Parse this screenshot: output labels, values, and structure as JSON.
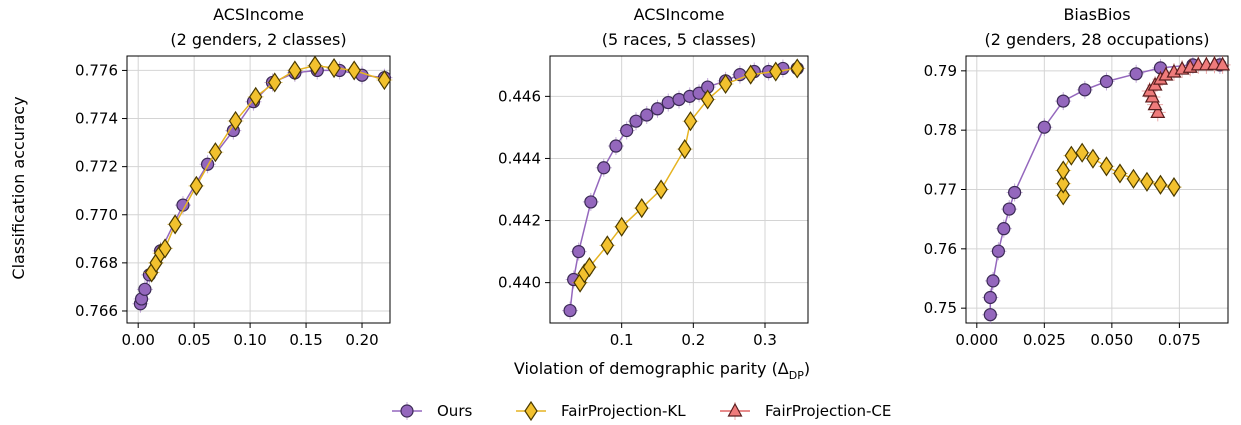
{
  "figure": {
    "ylabel": "Classification accuracy",
    "xlabel_main": "Violation of demographic parity (Δ",
    "xlabel_sub": "DP",
    "xlabel_close": ")"
  },
  "legend": {
    "placement": "bottom-center",
    "items": [
      {
        "label": "Ours",
        "marker": "circle",
        "color": "#9467bd",
        "edge": "#3b2a55",
        "line": "#9467bd"
      },
      {
        "label": "FairProjection-KL",
        "marker": "diamond",
        "color": "#f2c12e",
        "edge": "#4a3a00",
        "line": "#e6b422"
      },
      {
        "label": "FairProjection-CE",
        "marker": "triangle",
        "color": "#ef7b7b",
        "edge": "#5a1e1e",
        "line": "#e06666"
      }
    ]
  },
  "chart_data": [
    {
      "type": "line",
      "title_line1": "ACSIncome",
      "title_line2": "(2 genders, 2 classes)",
      "xlim": [
        -0.01,
        0.225
      ],
      "ylim": [
        0.7655,
        0.7766
      ],
      "xticks": [
        0.0,
        0.05,
        0.1,
        0.15,
        0.2
      ],
      "xtick_labels": [
        "0.00",
        "0.05",
        "0.10",
        "0.15",
        "0.20"
      ],
      "yticks": [
        0.766,
        0.768,
        0.77,
        0.772,
        0.774,
        0.776
      ],
      "ytick_labels": [
        "0.766",
        "0.768",
        "0.770",
        "0.772",
        "0.774",
        "0.776"
      ],
      "grid": true,
      "series": [
        {
          "name": "Ours",
          "marker": "circle",
          "points": [
            [
              0.002,
              0.7663
            ],
            [
              0.003,
              0.7665
            ],
            [
              0.006,
              0.7669
            ],
            [
              0.01,
              0.7675
            ],
            [
              0.02,
              0.7685
            ],
            [
              0.04,
              0.7704
            ],
            [
              0.062,
              0.7721
            ],
            [
              0.085,
              0.7735
            ],
            [
              0.103,
              0.7747
            ],
            [
              0.12,
              0.7755
            ],
            [
              0.14,
              0.7759
            ],
            [
              0.16,
              0.776
            ],
            [
              0.18,
              0.776
            ],
            [
              0.2,
              0.7758
            ],
            [
              0.22,
              0.7757
            ]
          ]
        },
        {
          "name": "FairProjection-KL",
          "marker": "diamond",
          "points": [
            [
              0.012,
              0.7676
            ],
            [
              0.016,
              0.768
            ],
            [
              0.02,
              0.7684
            ],
            [
              0.024,
              0.7686
            ],
            [
              0.033,
              0.7696
            ],
            [
              0.052,
              0.7712
            ],
            [
              0.069,
              0.7726
            ],
            [
              0.087,
              0.7739
            ],
            [
              0.105,
              0.7749
            ],
            [
              0.122,
              0.7755
            ],
            [
              0.14,
              0.776
            ],
            [
              0.158,
              0.7762
            ],
            [
              0.175,
              0.7761
            ],
            [
              0.193,
              0.776
            ],
            [
              0.22,
              0.7756
            ]
          ]
        }
      ]
    },
    {
      "type": "line",
      "title_line1": "ACSIncome",
      "title_line2": "(5 races, 5 classes)",
      "xlim": [
        0.0,
        0.36
      ],
      "ylim": [
        0.4387,
        0.4473
      ],
      "xticks": [
        0.1,
        0.2,
        0.3
      ],
      "xtick_labels": [
        "0.1",
        "0.2",
        "0.3"
      ],
      "yticks": [
        0.44,
        0.442,
        0.444,
        0.446
      ],
      "ytick_labels": [
        "0.440",
        "0.442",
        "0.444",
        "0.446"
      ],
      "grid": true,
      "series": [
        {
          "name": "Ours",
          "marker": "circle",
          "points": [
            [
              0.028,
              0.4391
            ],
            [
              0.033,
              0.4401
            ],
            [
              0.04,
              0.441
            ],
            [
              0.057,
              0.4426
            ],
            [
              0.075,
              0.4437
            ],
            [
              0.092,
              0.4444
            ],
            [
              0.107,
              0.4449
            ],
            [
              0.12,
              0.4452
            ],
            [
              0.135,
              0.4454
            ],
            [
              0.15,
              0.4456
            ],
            [
              0.165,
              0.4458
            ],
            [
              0.18,
              0.4459
            ],
            [
              0.195,
              0.446
            ],
            [
              0.208,
              0.4461
            ],
            [
              0.22,
              0.4463
            ],
            [
              0.245,
              0.4465
            ],
            [
              0.265,
              0.4467
            ],
            [
              0.285,
              0.4468
            ],
            [
              0.305,
              0.4468
            ],
            [
              0.325,
              0.4469
            ],
            [
              0.345,
              0.4469
            ]
          ]
        },
        {
          "name": "FairProjection-KL",
          "marker": "diamond",
          "points": [
            [
              0.042,
              0.44
            ],
            [
              0.048,
              0.4403
            ],
            [
              0.055,
              0.4405
            ],
            [
              0.08,
              0.4412
            ],
            [
              0.1,
              0.4418
            ],
            [
              0.128,
              0.4424
            ],
            [
              0.155,
              0.443
            ],
            [
              0.188,
              0.4443
            ],
            [
              0.196,
              0.4452
            ],
            [
              0.22,
              0.4459
            ],
            [
              0.245,
              0.4464
            ],
            [
              0.28,
              0.4467
            ],
            [
              0.315,
              0.4468
            ],
            [
              0.345,
              0.4469
            ]
          ]
        }
      ]
    },
    {
      "type": "line",
      "title_line1": "BiasBios",
      "title_line2": "(2 genders, 28 occupations)",
      "xlim": [
        -0.004,
        0.093
      ],
      "ylim": [
        0.7475,
        0.7925
      ],
      "xticks": [
        0.0,
        0.025,
        0.05,
        0.075
      ],
      "xtick_labels": [
        "0.000",
        "0.025",
        "0.050",
        "0.075"
      ],
      "yticks": [
        0.75,
        0.76,
        0.77,
        0.78,
        0.79
      ],
      "ytick_labels": [
        "0.75",
        "0.76",
        "0.77",
        "0.78",
        "0.79"
      ],
      "grid": true,
      "series": [
        {
          "name": "Ours",
          "marker": "circle",
          "points": [
            [
              0.005,
              0.7489
            ],
            [
              0.005,
              0.7518
            ],
            [
              0.006,
              0.7546
            ],
            [
              0.008,
              0.7596
            ],
            [
              0.01,
              0.7634
            ],
            [
              0.012,
              0.7667
            ],
            [
              0.014,
              0.7695
            ],
            [
              0.025,
              0.7805
            ],
            [
              0.032,
              0.7849
            ],
            [
              0.04,
              0.7868
            ],
            [
              0.048,
              0.7882
            ],
            [
              0.059,
              0.7895
            ],
            [
              0.068,
              0.7905
            ],
            [
              0.08,
              0.791
            ],
            [
              0.09,
              0.791
            ]
          ]
        },
        {
          "name": "FairProjection-KL",
          "marker": "diamond",
          "points": [
            [
              0.032,
              0.769
            ],
            [
              0.032,
              0.771
            ],
            [
              0.032,
              0.7732
            ],
            [
              0.035,
              0.7757
            ],
            [
              0.039,
              0.7762
            ],
            [
              0.043,
              0.7752
            ],
            [
              0.048,
              0.7739
            ],
            [
              0.053,
              0.7727
            ],
            [
              0.058,
              0.7718
            ],
            [
              0.063,
              0.7713
            ],
            [
              0.068,
              0.7708
            ],
            [
              0.073,
              0.7704
            ]
          ]
        },
        {
          "name": "FairProjection-CE",
          "marker": "triangle",
          "points": [
            [
              0.067,
              0.783
            ],
            [
              0.066,
              0.7843
            ],
            [
              0.065,
              0.7856
            ],
            [
              0.064,
              0.7866
            ],
            [
              0.066,
              0.7876
            ],
            [
              0.068,
              0.7886
            ],
            [
              0.07,
              0.7893
            ],
            [
              0.073,
              0.7898
            ],
            [
              0.076,
              0.7903
            ],
            [
              0.079,
              0.7906
            ],
            [
              0.082,
              0.791
            ],
            [
              0.085,
              0.791
            ],
            [
              0.088,
              0.7911
            ],
            [
              0.091,
              0.791
            ]
          ]
        }
      ]
    }
  ]
}
